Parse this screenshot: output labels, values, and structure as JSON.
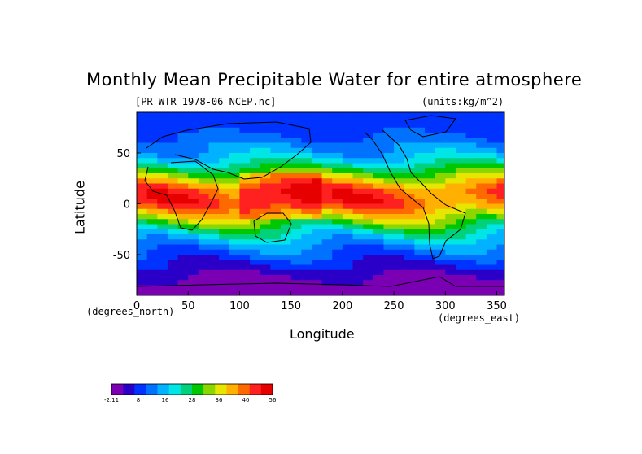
{
  "chart_data": {
    "type": "heatmap",
    "title": "Monthly Mean Precipitable Water for entire atmosphere",
    "source_label": "[PR_WTR_1978-06_NCEP.nc]",
    "units_label": "(units:kg/m^2)",
    "xlabel": "Longitude",
    "ylabel": "Latitude",
    "x_unit": "(degrees_east)",
    "y_unit": "(degrees_north)",
    "xlim": [
      0,
      357.5
    ],
    "ylim": [
      -90,
      90
    ],
    "x_ticks": [
      "0",
      "50",
      "100",
      "150",
      "200",
      "250",
      "300",
      "350"
    ],
    "x_tick_values": [
      0,
      50,
      100,
      150,
      200,
      250,
      300,
      350
    ],
    "y_ticks": [
      "50",
      "0",
      "-50"
    ],
    "y_tick_values": [
      50,
      0,
      -50
    ],
    "zonal_mean_profile": {
      "lat": [
        -90,
        -75,
        -60,
        -45,
        -30,
        -15,
        0,
        15,
        30,
        45,
        60,
        75,
        90
      ],
      "value": [
        1,
        3,
        8,
        14,
        22,
        35,
        48,
        46,
        32,
        20,
        14,
        10,
        9
      ]
    },
    "colorbar": {
      "min_label": "-2.11",
      "tick_labels": [
        "-2.11",
        "8",
        "16",
        "28",
        "36",
        "40",
        "56"
      ],
      "colors": [
        "#7b00b4",
        "#2a00c8",
        "#0033ff",
        "#0072ff",
        "#00b2ff",
        "#00e6e6",
        "#00d17a",
        "#00c800",
        "#8cd600",
        "#e6e600",
        "#ffb000",
        "#ff6a00",
        "#ff2020",
        "#e60000"
      ]
    }
  }
}
